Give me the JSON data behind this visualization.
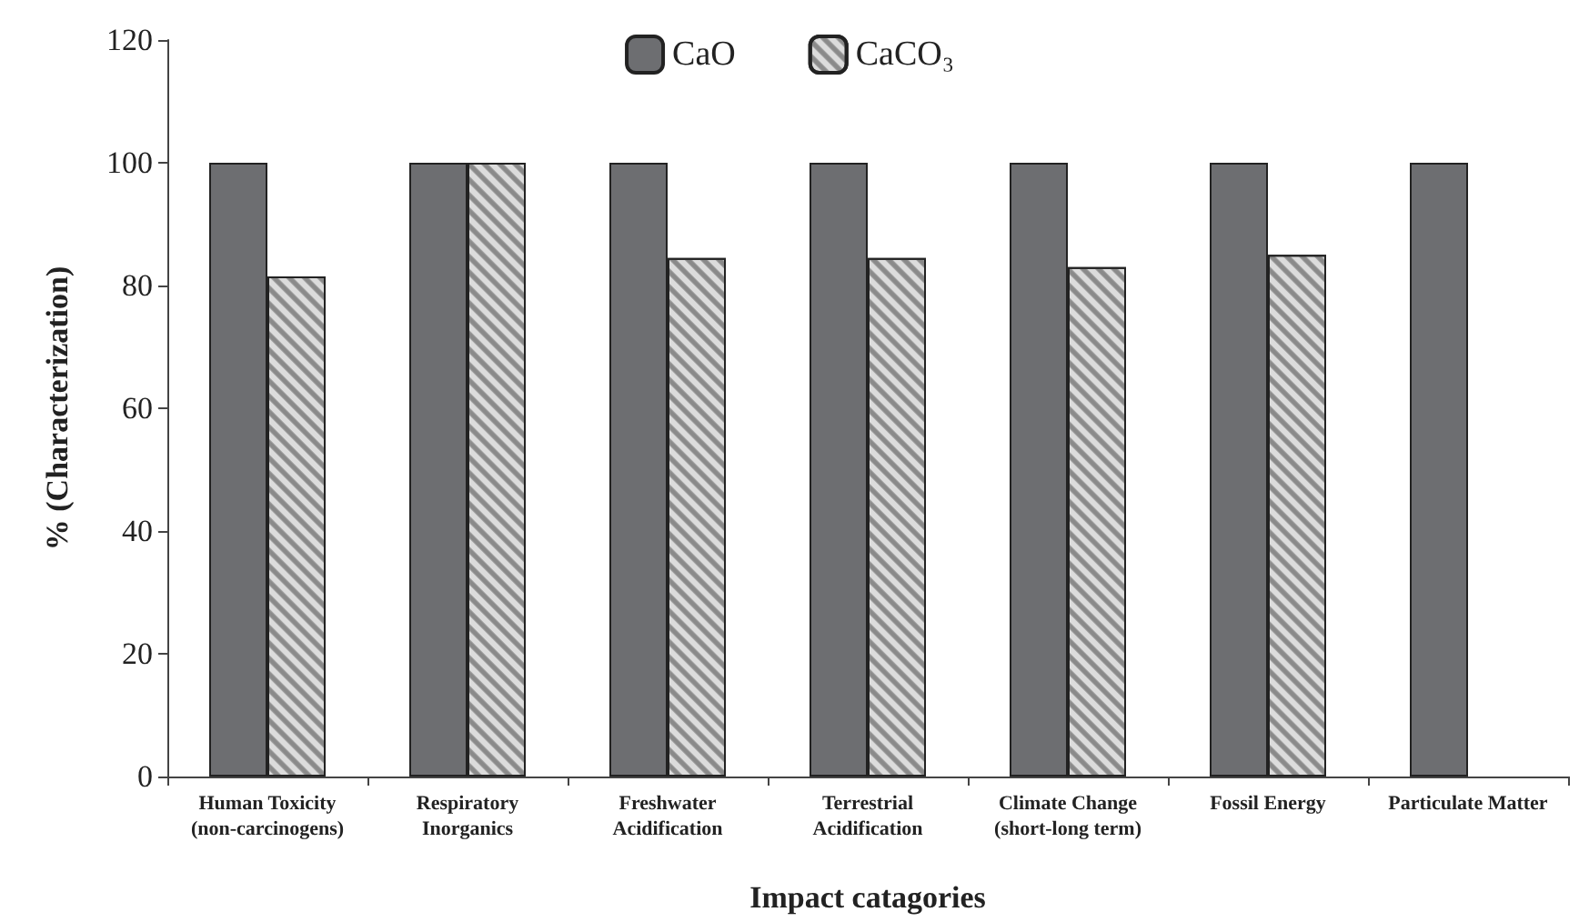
{
  "chart_data": {
    "type": "bar",
    "xlabel": "Impact catagories",
    "ylabel": "% (Characterization)",
    "categories": [
      "Human Toxicity\n(non-carcinogens)",
      "Respiratory\nInorganics",
      "Freshwater\nAcidification",
      "Terrestrial\nAcidification",
      "Climate Change\n(short-long term)",
      "Fossil Energy",
      "Particulate Matter"
    ],
    "series": [
      {
        "name": "CaO",
        "color": "#6d6e71",
        "values": [
          100,
          100,
          100,
          100,
          100,
          100,
          100
        ]
      },
      {
        "name": "CaCO₃",
        "color": "#dcdcdc",
        "values": [
          81.5,
          100,
          84.5,
          84.5,
          83,
          85,
          null
        ]
      }
    ],
    "ylim": [
      0,
      120
    ],
    "yticks": [
      0,
      20,
      40,
      60,
      80,
      100,
      120
    ],
    "grid": false,
    "legend": "top"
  }
}
